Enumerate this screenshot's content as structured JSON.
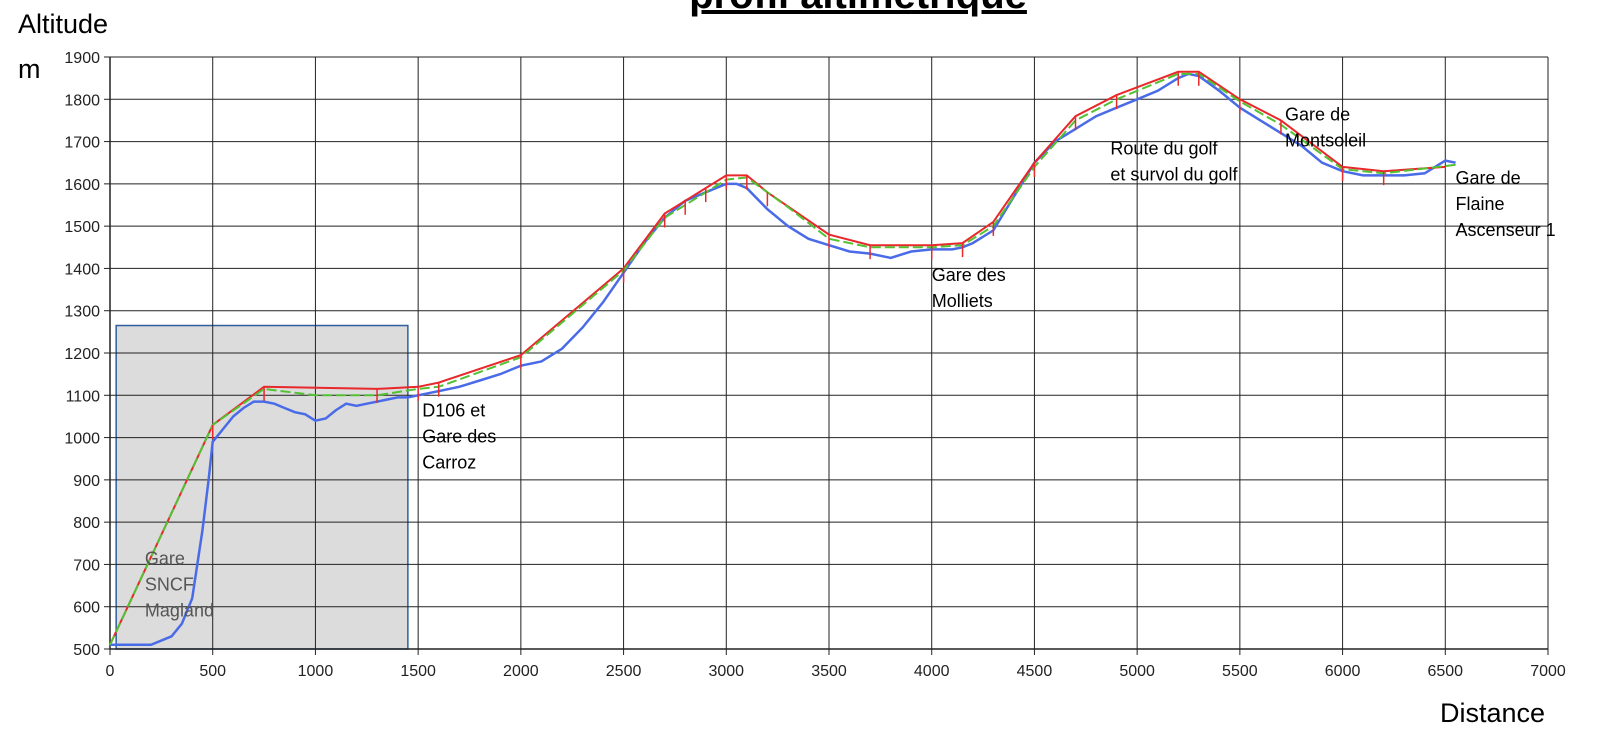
{
  "chart_data": {
    "type": "line",
    "title": "profil altimétrique",
    "ylabel": [
      "Altitude",
      "m"
    ],
    "xlabel": "Distance",
    "xlim": [
      0,
      7000
    ],
    "ylim": [
      500,
      1900
    ],
    "xticks": [
      "0",
      "500",
      "1000",
      "1500",
      "2000",
      "2500",
      "3000",
      "3500",
      "4000",
      "4500",
      "5000",
      "5500",
      "6000",
      "6500",
      "7000"
    ],
    "yticks": [
      "500",
      "600",
      "700",
      "800",
      "900",
      "1000",
      "1100",
      "1200",
      "1300",
      "1400",
      "1500",
      "1600",
      "1700",
      "1800",
      "1900"
    ],
    "grid": true,
    "highlight_region": {
      "x": [
        30,
        1450
      ],
      "y": [
        500,
        1265
      ],
      "color": "#dcdcdc",
      "border": "#2f5f9f"
    },
    "series": [
      {
        "color": "#4a6be8",
        "x": [
          0,
          100,
          200,
          300,
          350,
          400,
          450,
          480,
          500,
          550,
          600,
          650,
          700,
          750,
          800,
          850,
          900,
          950,
          1000,
          1050,
          1100,
          1150,
          1200,
          1250,
          1300,
          1350,
          1400,
          1450,
          1500,
          1550,
          1600,
          1700,
          1800,
          1900,
          2000,
          2100,
          2200,
          2300,
          2400,
          2500,
          2600,
          2700,
          2800,
          2900,
          3000,
          3050,
          3100,
          3200,
          3300,
          3400,
          3500,
          3600,
          3700,
          3800,
          3900,
          4000,
          4050,
          4100,
          4150,
          4200,
          4300,
          4400,
          4500,
          4600,
          4700,
          4800,
          4900,
          5000,
          5100,
          5200,
          5250,
          5300,
          5400,
          5500,
          5600,
          5700,
          5800,
          5900,
          6000,
          6100,
          6200,
          6300,
          6400,
          6450,
          6500,
          6550
        ],
        "y": [
          510,
          510,
          510,
          530,
          560,
          620,
          780,
          900,
          990,
          1020,
          1050,
          1070,
          1085,
          1085,
          1080,
          1070,
          1060,
          1055,
          1040,
          1045,
          1065,
          1080,
          1075,
          1080,
          1085,
          1090,
          1095,
          1095,
          1100,
          1105,
          1110,
          1120,
          1135,
          1150,
          1170,
          1180,
          1210,
          1260,
          1320,
          1390,
          1460,
          1520,
          1560,
          1580,
          1600,
          1600,
          1590,
          1540,
          1500,
          1470,
          1455,
          1440,
          1435,
          1425,
          1440,
          1445,
          1445,
          1445,
          1450,
          1460,
          1490,
          1570,
          1650,
          1700,
          1730,
          1760,
          1780,
          1800,
          1820,
          1850,
          1860,
          1855,
          1820,
          1780,
          1750,
          1720,
          1690,
          1650,
          1630,
          1620,
          1620,
          1620,
          1625,
          1640,
          1655,
          1650
        ]
      },
      {
        "color": "#e8282b",
        "x": [
          0,
          500,
          750,
          1300,
          1500,
          1600,
          2000,
          2500,
          2700,
          2800,
          2900,
          3000,
          3100,
          3200,
          3500,
          3700,
          4000,
          4150,
          4300,
          4500,
          4700,
          4900,
          5200,
          5300,
          5500,
          5700,
          6000,
          6200,
          6500
        ],
        "y": [
          510,
          1030,
          1120,
          1115,
          1120,
          1130,
          1195,
          1400,
          1530,
          1560,
          1590,
          1620,
          1620,
          1580,
          1480,
          1455,
          1455,
          1460,
          1510,
          1650,
          1760,
          1810,
          1865,
          1865,
          1800,
          1750,
          1640,
          1630,
          1640
        ]
      },
      {
        "color": "#52c132",
        "x": [
          0,
          500,
          750,
          1000,
          1300,
          1500,
          1600,
          2000,
          2500,
          2700,
          3000,
          3100,
          3300,
          3500,
          3700,
          4000,
          4150,
          4300,
          4500,
          4700,
          4900,
          5200,
          5300,
          5500,
          5700,
          6000,
          6200,
          6550
        ],
        "y": [
          510,
          1030,
          1115,
          1100,
          1100,
          1115,
          1120,
          1190,
          1395,
          1520,
          1610,
          1615,
          1545,
          1470,
          1450,
          1450,
          1455,
          1500,
          1640,
          1750,
          1800,
          1860,
          1860,
          1795,
          1740,
          1635,
          1625,
          1645
        ]
      }
    ],
    "annotations": [
      {
        "lines": [
          "Gare",
          "SNCF",
          "Magland"
        ],
        "x": 170,
        "y": 700,
        "muted": true
      },
      {
        "lines": [
          "D106 et",
          "Gare des",
          "Carroz"
        ],
        "x": 1520,
        "y": 1050
      },
      {
        "lines": [
          "Gare des",
          "Molliets"
        ],
        "x": 4000,
        "y": 1370
      },
      {
        "lines": [
          "Route du golf",
          "et survol du golf"
        ],
        "x": 4870,
        "y": 1670
      },
      {
        "lines": [
          "Gare de",
          "Montsoleil"
        ],
        "x": 5720,
        "y": 1750
      },
      {
        "lines": [
          "Gare de",
          "Flaine",
          "Ascenseur 1"
        ],
        "x": 6550,
        "y": 1600
      }
    ]
  }
}
